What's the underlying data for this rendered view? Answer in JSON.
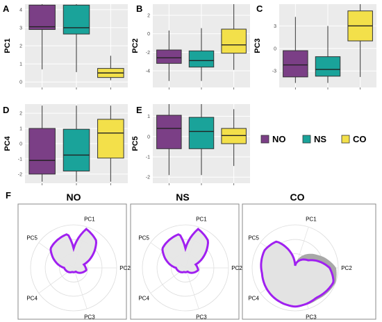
{
  "colors": {
    "NO": "#7b3f86",
    "NS": "#1aa39a",
    "CO": "#f3e04a",
    "panel_bg": "#ebebeb",
    "grid": "#ffffff",
    "radar_line": "#a020f0",
    "radar_fill": "#e6e6e6",
    "radar_band": "#a8a8a8"
  },
  "legend": {
    "items": [
      "NO",
      "NS",
      "CO"
    ]
  },
  "chart_data": [
    {
      "type": "boxplot",
      "panel": "A",
      "ylabel": "PC1",
      "categories": [
        "NO",
        "NS",
        "CO"
      ],
      "yticks": [
        "0",
        "1",
        "2",
        "3",
        "4"
      ],
      "ylim": [
        -0.3,
        4.3
      ],
      "boxes": [
        {
          "min": 0.7,
          "q1": 2.9,
          "median": 3.05,
          "q3": 4.25,
          "max": 4.3
        },
        {
          "min": 0.55,
          "q1": 2.65,
          "median": 3.0,
          "q3": 4.25,
          "max": 4.3
        },
        {
          "min": 0.1,
          "q1": 0.25,
          "median": 0.5,
          "q3": 0.75,
          "max": 1.45
        }
      ]
    },
    {
      "type": "boxplot",
      "panel": "B",
      "ylabel": "PC2",
      "categories": [
        "NO",
        "NS",
        "CO"
      ],
      "yticks": [
        "2",
        "0",
        "-2",
        "-4"
      ],
      "ylim": [
        -5.8,
        3.2
      ],
      "boxes": [
        {
          "min": -5.1,
          "q1": -3.2,
          "median": -2.6,
          "q3": -1.75,
          "max": 0.35
        },
        {
          "min": -5.1,
          "q1": -3.6,
          "median": -2.9,
          "q3": -1.85,
          "max": 0.6
        },
        {
          "min": -3.9,
          "q1": -2.1,
          "median": -1.2,
          "q3": 0.5,
          "max": 3.2
        }
      ]
    },
    {
      "type": "boxplot",
      "panel": "C",
      "ylabel": "PC3",
      "categories": [
        "NO",
        "NS",
        "CO"
      ],
      "yticks": [
        "3",
        "0",
        "-3"
      ],
      "ylim": [
        -5.2,
        5.9
      ],
      "boxes": [
        {
          "min": -4.6,
          "q1": -3.8,
          "median": -2.2,
          "q3": -0.3,
          "max": 4.2
        },
        {
          "min": -4.6,
          "q1": -3.7,
          "median": -2.8,
          "q3": -1.1,
          "max": 3.0
        },
        {
          "min": -3.8,
          "q1": 1.0,
          "median": 3.0,
          "q3": 5.0,
          "max": 5.9
        }
      ]
    },
    {
      "type": "boxplot",
      "panel": "D",
      "ylabel": "PC4",
      "categories": [
        "NO",
        "NS",
        "CO"
      ],
      "yticks": [
        "2",
        "1",
        "0",
        "-1",
        "-2"
      ],
      "ylim": [
        -2.6,
        2.6
      ],
      "boxes": [
        {
          "min": -2.5,
          "q1": -2.0,
          "median": -1.1,
          "q3": 1.0,
          "max": 2.5
        },
        {
          "min": -2.5,
          "q1": -1.8,
          "median": -0.75,
          "q3": 0.95,
          "max": 2.5
        },
        {
          "min": -2.5,
          "q1": -0.95,
          "median": 0.7,
          "q3": 1.6,
          "max": 2.5
        }
      ]
    },
    {
      "type": "boxplot",
      "panel": "E",
      "ylabel": "PC5",
      "categories": [
        "NO",
        "NS",
        "CO"
      ],
      "yticks": [
        "1",
        "0",
        "-1",
        "-2"
      ],
      "ylim": [
        -2.3,
        1.6
      ],
      "boxes": [
        {
          "min": -1.9,
          "q1": -0.6,
          "median": 0.4,
          "q3": 1.05,
          "max": 1.6
        },
        {
          "min": -1.9,
          "q1": -0.6,
          "median": 0.25,
          "q3": 0.95,
          "max": 1.6
        },
        {
          "min": -1.45,
          "q1": -0.35,
          "median": 0.05,
          "q3": 0.4,
          "max": 1.35
        }
      ]
    },
    {
      "type": "radar",
      "panel": "F",
      "title": "NO",
      "axes": [
        "PC1",
        "PC2",
        "PC3",
        "PC4",
        "PC5"
      ],
      "rmax": 1,
      "profile": [
        [
          0,
          0.45
        ],
        [
          18,
          0.95
        ],
        [
          40,
          0.82
        ],
        [
          72,
          0.25
        ],
        [
          100,
          0.3
        ],
        [
          120,
          0.22
        ],
        [
          150,
          0.1
        ],
        [
          200,
          0.1
        ],
        [
          270,
          0.22
        ],
        [
          310,
          0.7
        ],
        [
          350,
          0.8
        ],
        [
          360,
          0.45
        ]
      ]
    },
    {
      "type": "radar",
      "panel": "F",
      "title": "NS",
      "axes": [
        "PC1",
        "PC2",
        "PC3",
        "PC4",
        "PC5"
      ],
      "rmax": 1,
      "profile": [
        [
          0,
          0.45
        ],
        [
          18,
          0.95
        ],
        [
          40,
          0.82
        ],
        [
          72,
          0.25
        ],
        [
          100,
          0.3
        ],
        [
          120,
          0.22
        ],
        [
          150,
          0.1
        ],
        [
          200,
          0.1
        ],
        [
          270,
          0.22
        ],
        [
          310,
          0.7
        ],
        [
          350,
          0.8
        ],
        [
          360,
          0.45
        ]
      ]
    },
    {
      "type": "radar",
      "panel": "F",
      "title": "CO",
      "axes": [
        "PC1",
        "PC2",
        "PC3",
        "PC4",
        "PC5"
      ],
      "rmax": 1,
      "profile": [
        [
          0,
          0.05
        ],
        [
          60,
          0.35
        ],
        [
          90,
          0.8
        ],
        [
          110,
          0.95
        ],
        [
          145,
          0.85
        ],
        [
          180,
          0.9
        ],
        [
          215,
          0.85
        ],
        [
          260,
          0.78
        ],
        [
          300,
          0.82
        ],
        [
          325,
          0.75
        ],
        [
          360,
          0.05
        ]
      ],
      "band_outer": [
        [
          0,
          0.05
        ],
        [
          60,
          0.6
        ],
        [
          90,
          0.95
        ],
        [
          110,
          1.0
        ],
        [
          145,
          0.9
        ],
        [
          180,
          0.9
        ],
        [
          215,
          0.85
        ],
        [
          260,
          0.78
        ],
        [
          300,
          0.82
        ],
        [
          325,
          0.75
        ],
        [
          360,
          0.05
        ]
      ]
    }
  ]
}
